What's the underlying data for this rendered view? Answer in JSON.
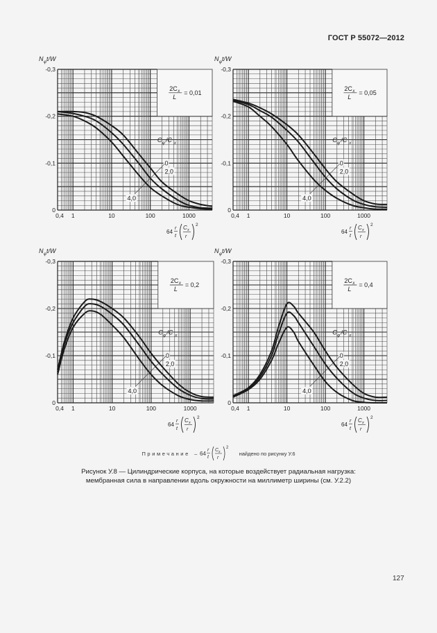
{
  "header": {
    "doc_id": "ГОСТ Р 55072—2012"
  },
  "chart_data": [
    {
      "type": "line",
      "panel": "top-left",
      "title": "2Cx/L = 0,01",
      "param_label": "2Cx/L",
      "param_value": "0,01",
      "ylabel": "Nφt/W",
      "xlabel": "64 (r/t)(Cx/r)^2",
      "xscale": "log",
      "xlim": [
        0.4,
        4000
      ],
      "ylim": [
        0,
        -0.3
      ],
      "yticks": [
        "-0,3",
        "-0,2",
        "-0,1",
        "0"
      ],
      "xticks": [
        "0,4",
        "1",
        "10",
        "100",
        "1000"
      ],
      "legend_title": "Cφ/Cx",
      "grid": true,
      "series": [
        {
          "name": "0",
          "x": [
            0.4,
            1,
            2,
            4,
            10,
            20,
            50,
            100,
            200,
            500,
            1000,
            2000,
            4000
          ],
          "y": [
            -0.21,
            -0.21,
            -0.208,
            -0.2,
            -0.18,
            -0.16,
            -0.12,
            -0.09,
            -0.06,
            -0.035,
            -0.02,
            -0.012,
            -0.008
          ]
        },
        {
          "name": "2,0",
          "x": [
            0.4,
            1,
            2,
            4,
            10,
            20,
            50,
            100,
            200,
            500,
            1000,
            2000,
            4000
          ],
          "y": [
            -0.21,
            -0.206,
            -0.2,
            -0.19,
            -0.165,
            -0.14,
            -0.1,
            -0.068,
            -0.045,
            -0.022,
            -0.01,
            -0.005,
            -0.004
          ]
        },
        {
          "name": "4,0",
          "x": [
            0.4,
            1,
            2,
            4,
            10,
            20,
            50,
            100,
            200,
            500,
            1000,
            2000,
            4000
          ],
          "y": [
            -0.205,
            -0.2,
            -0.19,
            -0.175,
            -0.145,
            -0.115,
            -0.075,
            -0.048,
            -0.03,
            -0.012,
            -0.006,
            -0.003,
            -0.002
          ]
        }
      ]
    },
    {
      "type": "line",
      "panel": "top-right",
      "title": "2Cx/L = 0,05",
      "param_label": "2Cx/L",
      "param_value": "0,05",
      "ylabel": "Nφt/W",
      "xlabel": "64 (r/t)(Cx/r)^2",
      "xscale": "log",
      "xlim": [
        0.4,
        4000
      ],
      "ylim": [
        0,
        -0.3
      ],
      "yticks": [
        "-0,3",
        "-0,2",
        "-0,1",
        "0"
      ],
      "xticks": [
        "0,4",
        "1",
        "10",
        "100",
        "1000"
      ],
      "legend_title": "Cφ/Cx",
      "grid": true,
      "series": [
        {
          "name": "0",
          "x": [
            0.4,
            1,
            2,
            4,
            10,
            20,
            50,
            100,
            200,
            500,
            1000,
            2000,
            4000
          ],
          "y": [
            -0.236,
            -0.228,
            -0.218,
            -0.205,
            -0.182,
            -0.16,
            -0.12,
            -0.088,
            -0.06,
            -0.035,
            -0.02,
            -0.013,
            -0.012
          ]
        },
        {
          "name": "2,0",
          "x": [
            0.4,
            1,
            2,
            4,
            10,
            20,
            50,
            100,
            200,
            500,
            1000,
            2000,
            4000
          ],
          "y": [
            -0.234,
            -0.225,
            -0.212,
            -0.198,
            -0.17,
            -0.145,
            -0.102,
            -0.07,
            -0.045,
            -0.022,
            -0.012,
            -0.007,
            -0.006
          ]
        },
        {
          "name": "4,0",
          "x": [
            0.4,
            1,
            2,
            4,
            10,
            20,
            50,
            100,
            200,
            500,
            1000,
            2000,
            4000
          ],
          "y": [
            -0.232,
            -0.22,
            -0.2,
            -0.178,
            -0.14,
            -0.105,
            -0.065,
            -0.042,
            -0.025,
            -0.01,
            -0.005,
            -0.002,
            -0.002
          ]
        }
      ]
    },
    {
      "type": "line",
      "panel": "bottom-left",
      "title": "2Cx/L = 0,2",
      "param_label": "2Cx/L",
      "param_value": "0,2",
      "ylabel": "Nφt/W",
      "xlabel": "64 (r/t)(Cx/r)^2",
      "xscale": "log",
      "xlim": [
        0.4,
        4000
      ],
      "ylim": [
        0,
        -0.3
      ],
      "yticks": [
        "-0,3",
        "-0,2",
        "-0,1",
        "0"
      ],
      "xticks": [
        "0,4",
        "1",
        "10",
        "100",
        "1000"
      ],
      "legend_title": "Cφ/Cx",
      "grid": true,
      "series": [
        {
          "name": "0",
          "x": [
            0.4,
            0.6,
            1,
            2,
            3,
            5,
            10,
            20,
            50,
            100,
            200,
            500,
            1000,
            2000,
            4000
          ],
          "y": [
            -0.07,
            -0.13,
            -0.18,
            -0.215,
            -0.22,
            -0.215,
            -0.2,
            -0.18,
            -0.14,
            -0.105,
            -0.075,
            -0.04,
            -0.022,
            -0.013,
            -0.012
          ]
        },
        {
          "name": "2,0",
          "x": [
            0.4,
            0.6,
            1,
            2,
            3,
            5,
            10,
            20,
            50,
            100,
            200,
            500,
            1000,
            2000,
            4000
          ],
          "y": [
            -0.065,
            -0.125,
            -0.17,
            -0.205,
            -0.21,
            -0.205,
            -0.188,
            -0.165,
            -0.122,
            -0.088,
            -0.06,
            -0.03,
            -0.016,
            -0.009,
            -0.008
          ]
        },
        {
          "name": "4,0",
          "x": [
            0.4,
            0.6,
            1,
            2,
            3,
            5,
            10,
            20,
            50,
            100,
            200,
            500,
            1000,
            2000,
            4000
          ],
          "y": [
            -0.06,
            -0.115,
            -0.16,
            -0.19,
            -0.195,
            -0.188,
            -0.165,
            -0.138,
            -0.092,
            -0.06,
            -0.036,
            -0.015,
            -0.007,
            -0.004,
            -0.004
          ]
        }
      ]
    },
    {
      "type": "line",
      "panel": "bottom-right",
      "title": "2Cx/L = 0,4",
      "param_label": "2Cx/L",
      "param_value": "0,4",
      "ylabel": "Nφt/W",
      "xlabel": "64 (r/t)(Cx/r)^2",
      "xscale": "log",
      "xlim": [
        0.4,
        4000
      ],
      "ylim": [
        0,
        -0.3
      ],
      "yticks": [
        "-0,3",
        "-0,2",
        "-0,1",
        "0"
      ],
      "xticks": [
        "0,4",
        "1",
        "10",
        "100",
        "1000"
      ],
      "legend_title": "Cφ/Cx",
      "grid": true,
      "series": [
        {
          "name": "0",
          "x": [
            0.4,
            1,
            2,
            4,
            6,
            10,
            15,
            20,
            50,
            100,
            200,
            500,
            1000,
            2000,
            4000
          ],
          "y": [
            -0.015,
            -0.032,
            -0.06,
            -0.11,
            -0.16,
            -0.21,
            -0.205,
            -0.19,
            -0.15,
            -0.11,
            -0.075,
            -0.04,
            -0.02,
            -0.012,
            -0.012
          ]
        },
        {
          "name": "2,0",
          "x": [
            0.4,
            1,
            2,
            4,
            6,
            10,
            15,
            20,
            50,
            100,
            200,
            500,
            1000,
            2000,
            4000
          ],
          "y": [
            -0.013,
            -0.03,
            -0.055,
            -0.1,
            -0.145,
            -0.19,
            -0.185,
            -0.17,
            -0.12,
            -0.082,
            -0.052,
            -0.022,
            -0.01,
            -0.005,
            -0.005
          ]
        },
        {
          "name": "4,0",
          "x": [
            0.4,
            1,
            2,
            4,
            6,
            10,
            15,
            20,
            50,
            100,
            200,
            500,
            1000,
            2000,
            4000
          ],
          "y": [
            -0.012,
            -0.028,
            -0.05,
            -0.09,
            -0.125,
            -0.16,
            -0.15,
            -0.13,
            -0.08,
            -0.045,
            -0.022,
            -0.005,
            -0.001,
            0,
            0
          ]
        }
      ]
    }
  ],
  "note": {
    "label": "Примечание",
    "dash": "–",
    "formula_coef": "64",
    "text": "найдено по рисунку У.6"
  },
  "caption": {
    "line1": "Рисунок У.8 — Цилиндрические корпуса, на которые воздействует радиальная нагрузка:",
    "line2": "мембранная сила в направлении вдоль окружности на миллиметр ширины (см. У.2.2)"
  },
  "page_number": "127"
}
